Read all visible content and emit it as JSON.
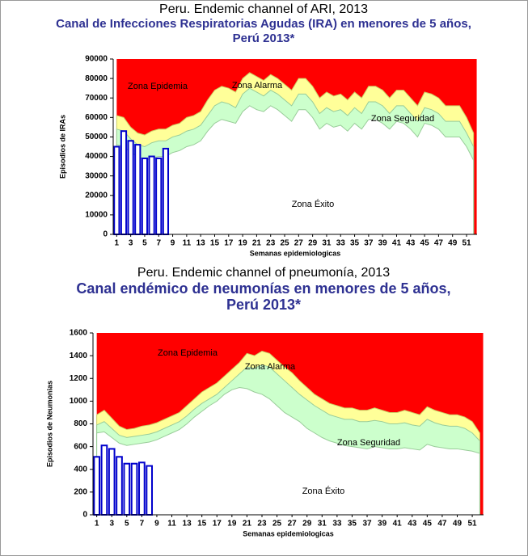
{
  "chart_data": [
    {
      "type": "endemic_channel",
      "caption": "Peru. Endemic channel of ARI, 2013",
      "title": [
        "Canal de Infecciones Respiratorias Agudas (IRA) en menores de 5 años,",
        "Perú 2013*"
      ],
      "xlabel": "Semanas epidemiologicas",
      "ylabel": "Episodios de IRAs",
      "categories": [
        "1",
        null,
        "3",
        null,
        "5",
        null,
        "7",
        null,
        "9",
        null,
        "11",
        null,
        "13",
        null,
        "15",
        null,
        "17",
        null,
        "19",
        null,
        "21",
        null,
        "23",
        null,
        "25",
        null,
        "27",
        null,
        "29",
        null,
        "31",
        null,
        "33",
        null,
        "35",
        null,
        "37",
        null,
        "39",
        null,
        "41",
        null,
        "43",
        null,
        "45",
        null,
        "47",
        null,
        "49",
        null,
        "51",
        null
      ],
      "ylim": [
        0,
        90000
      ],
      "yticks": [
        0,
        10000,
        20000,
        30000,
        40000,
        50000,
        60000,
        70000,
        80000,
        90000
      ],
      "epidemic_color": "#ff0000",
      "series": [
        {
          "color": "#ffff99",
          "values": [
            61000,
            60000,
            55000,
            52000,
            51000,
            53000,
            54000,
            54000,
            56000,
            57000,
            60000,
            61000,
            63000,
            69000,
            74000,
            76000,
            75000,
            73000,
            80000,
            83000,
            81000,
            79000,
            82000,
            80000,
            77000,
            74000,
            80000,
            80000,
            76000,
            70000,
            73000,
            71000,
            72000,
            69000,
            73000,
            70000,
            76000,
            76000,
            74000,
            70000,
            74000,
            74000,
            70000,
            66000,
            73000,
            72000,
            70000,
            66000,
            66000,
            66000,
            60000,
            52000
          ]
        },
        {
          "color": "#ccffcc",
          "values": [
            54000,
            53000,
            49000,
            46000,
            45000,
            47000,
            48000,
            48000,
            50000,
            51000,
            53000,
            54000,
            56000,
            61000,
            66000,
            68000,
            67000,
            65000,
            72000,
            75000,
            73000,
            71000,
            74000,
            72000,
            69000,
            66000,
            72000,
            72000,
            68000,
            62000,
            65000,
            63000,
            64000,
            61000,
            65000,
            62000,
            68000,
            68000,
            66000,
            62000,
            66000,
            66000,
            62000,
            58000,
            65000,
            64000,
            62000,
            58000,
            58000,
            58000,
            52000,
            45000
          ]
        },
        {
          "color": "#ffffff",
          "values": [
            46000,
            45000,
            42000,
            40000,
            38000,
            39000,
            40000,
            40000,
            42000,
            43000,
            45000,
            46000,
            48000,
            53000,
            57000,
            59000,
            58000,
            57000,
            63000,
            66000,
            64000,
            63000,
            66000,
            64000,
            61000,
            58000,
            64000,
            64000,
            60000,
            54000,
            57000,
            55000,
            56000,
            53000,
            57000,
            54000,
            59000,
            59000,
            57000,
            54000,
            58000,
            57000,
            54000,
            50000,
            57000,
            56000,
            54000,
            50000,
            50000,
            50000,
            45000,
            38000
          ]
        }
      ],
      "bars": {
        "color": "#0000cc",
        "values": [
          45000,
          53000,
          48000,
          46000,
          39000,
          40000,
          39000,
          44000
        ]
      },
      "annotations": [
        "Zona Epidemia",
        "Zona Alarma",
        "Zona Seguridad",
        "Zona Éxito"
      ]
    },
    {
      "type": "endemic_channel",
      "caption": "Peru. Endemic channel of pneumonía, 2013",
      "title": [
        "Canal endémico de neumonías en menores de 5 años,",
        "Perú 2013*"
      ],
      "xlabel": "Semanas epidemiologicas",
      "ylabel": "Episodios de Neumonias",
      "categories": [
        "1",
        null,
        "3",
        null,
        "5",
        null,
        "7",
        null,
        "9",
        null,
        "11",
        null,
        "13",
        null,
        "15",
        null,
        "17",
        null,
        "19",
        null,
        "21",
        null,
        "23",
        null,
        "25",
        null,
        "27",
        null,
        "29",
        null,
        "31",
        null,
        "33",
        null,
        "35",
        null,
        "37",
        null,
        "39",
        null,
        "41",
        null,
        "43",
        null,
        "45",
        null,
        "47",
        null,
        "49",
        null,
        "51",
        null
      ],
      "ylim": [
        0,
        1600
      ],
      "yticks": [
        0,
        200,
        400,
        600,
        800,
        1000,
        1200,
        1400,
        1600
      ],
      "epidemic_color": "#ff0000",
      "series": [
        {
          "color": "#ffff99",
          "values": [
            880,
            920,
            850,
            780,
            750,
            760,
            780,
            790,
            810,
            840,
            870,
            900,
            960,
            1020,
            1080,
            1120,
            1160,
            1220,
            1280,
            1340,
            1420,
            1400,
            1440,
            1420,
            1360,
            1300,
            1250,
            1180,
            1120,
            1060,
            1020,
            980,
            960,
            940,
            940,
            920,
            920,
            940,
            920,
            900,
            900,
            920,
            900,
            880,
            950,
            920,
            900,
            880,
            880,
            860,
            820,
            720
          ]
        },
        {
          "color": "#ccffcc",
          "values": [
            790,
            820,
            760,
            700,
            680,
            690,
            700,
            710,
            730,
            760,
            790,
            820,
            870,
            930,
            980,
            1020,
            1060,
            1120,
            1180,
            1240,
            1300,
            1290,
            1320,
            1300,
            1240,
            1180,
            1120,
            1060,
            1010,
            960,
            920,
            880,
            860,
            840,
            840,
            820,
            820,
            830,
            820,
            800,
            800,
            810,
            790,
            780,
            840,
            810,
            790,
            780,
            780,
            760,
            720,
            650
          ]
        },
        {
          "color": "#ffffff",
          "values": [
            720,
            730,
            680,
            630,
            610,
            620,
            630,
            640,
            660,
            690,
            720,
            750,
            800,
            860,
            910,
            960,
            1000,
            1060,
            1100,
            1120,
            1110,
            1080,
            1060,
            1020,
            960,
            900,
            860,
            820,
            760,
            720,
            680,
            650,
            630,
            610,
            600,
            590,
            580,
            600,
            590,
            580,
            580,
            590,
            580,
            570,
            620,
            600,
            590,
            580,
            580,
            570,
            560,
            540
          ]
        }
      ],
      "bars": {
        "color": "#0000cc",
        "values": [
          510,
          610,
          580,
          510,
          450,
          450,
          460,
          430
        ]
      },
      "annotations": [
        "Zona Epidemia",
        "Zona Alarma",
        "Zona Seguridad",
        "Zona Éxito"
      ]
    }
  ]
}
